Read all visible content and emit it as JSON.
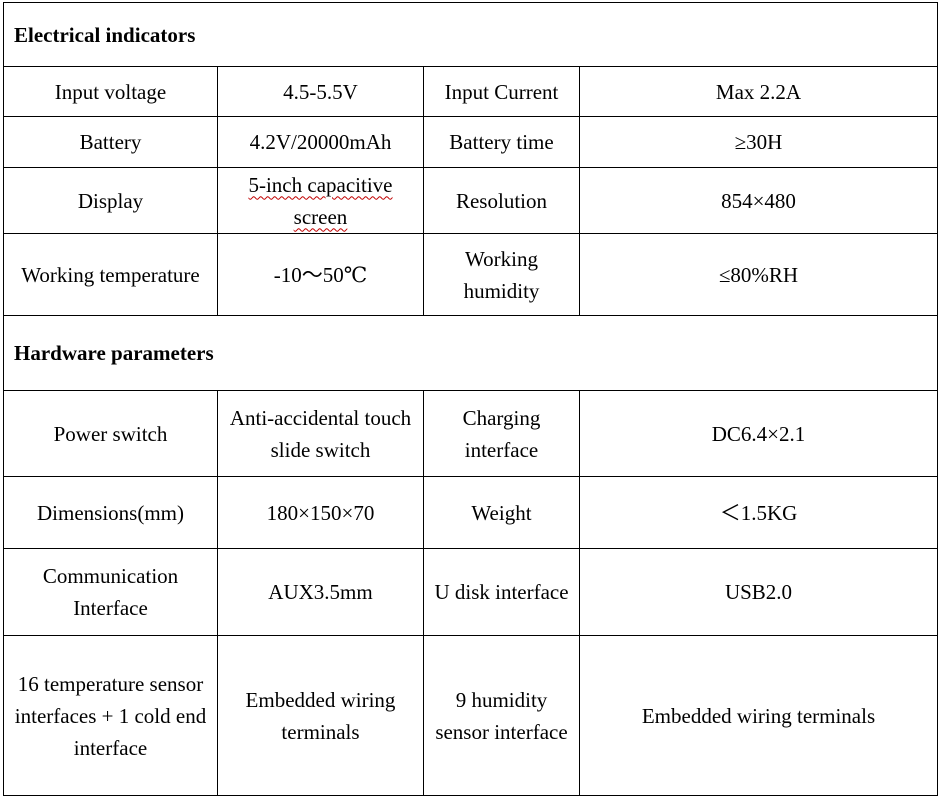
{
  "sections": [
    {
      "title": "Electrical indicators",
      "rows": [
        [
          "Input voltage",
          "4.5-5.5V",
          "Input Current",
          "Max 2.2A"
        ],
        [
          "Battery",
          "4.2V/20000mAh",
          "Battery time",
          "≥30H"
        ],
        [
          "Display",
          "5-inch capacitive screen",
          "Resolution",
          "854×480"
        ],
        [
          "Working temperature",
          "-10～50℃",
          "Working humidity",
          "≤80%RH"
        ]
      ]
    },
    {
      "title": "Hardware parameters",
      "rows": [
        [
          "Power switch",
          "Anti-accidental touch slide switch",
          "Charging interface",
          "DC6.4×2.1"
        ],
        [
          "Dimensions(mm)",
          "180×150×70",
          "Weight",
          "＜1.5KG"
        ],
        [
          "Communication Interface",
          "AUX3.5mm",
          "U disk interface",
          "USB2.0"
        ],
        [
          "16 temperature sensor interfaces + 1 cold end interface",
          "Embedded wiring terminals",
          "9 humidity sensor interface",
          "Embedded wiring terminals"
        ]
      ]
    }
  ]
}
